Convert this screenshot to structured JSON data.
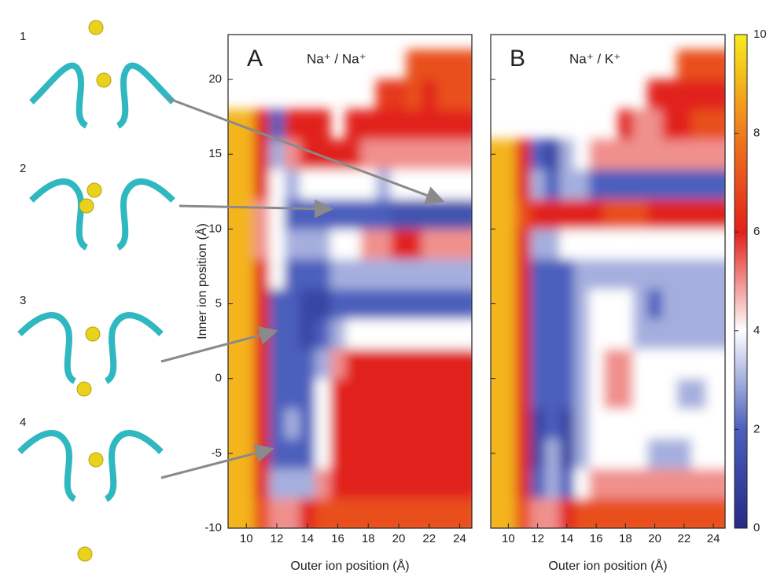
{
  "snapshots": [
    "1",
    "2",
    "3",
    "4"
  ],
  "chart_data": {
    "type": "heatmap",
    "xlabel": "Outer ion position (Å)",
    "ylabel": "Inner ion position (Å)",
    "x": [
      10,
      11,
      12,
      13,
      14,
      15,
      16,
      17,
      18,
      19,
      20,
      21,
      22,
      23,
      24
    ],
    "y": [
      -9,
      -7,
      -5,
      -3,
      -1,
      1,
      3,
      5,
      7,
      9,
      11,
      13,
      15,
      17,
      19,
      21
    ],
    "xlim": [
      8.8,
      24.8
    ],
    "ylim": [
      -10,
      23
    ],
    "xticks": [
      10,
      12,
      14,
      16,
      18,
      20,
      22,
      24
    ],
    "yticks": [
      -10,
      -5,
      0,
      5,
      10,
      15,
      20
    ],
    "clim": [
      0,
      10
    ],
    "cticks": [
      0,
      2,
      4,
      6,
      8,
      10
    ],
    "colormap": [
      "#262a86",
      "#4b5fbd",
      "#ffffff",
      "#e1211b",
      "#f07c1c",
      "#f8ec1c"
    ],
    "panels": [
      {
        "label": "A",
        "title": "Na⁺ / Na⁺",
        "z": [
          [
            9,
            7,
            5,
            5,
            6,
            7,
            7,
            7,
            7,
            7,
            7,
            7,
            7,
            7,
            7
          ],
          [
            9,
            6,
            3,
            3,
            3,
            5,
            6,
            6,
            6,
            6,
            6,
            6,
            6,
            6,
            6
          ],
          [
            9,
            6,
            2,
            2,
            2,
            4,
            6,
            6,
            6,
            6,
            6,
            6,
            6,
            6,
            6
          ],
          [
            9,
            6,
            2,
            3,
            2,
            4,
            6,
            6,
            6,
            6,
            6,
            6,
            6,
            6,
            6
          ],
          [
            9,
            6,
            2,
            2,
            2,
            4,
            6,
            6,
            6,
            6,
            6,
            6,
            6,
            6,
            6
          ],
          [
            9,
            6,
            2,
            2,
            2,
            3,
            5,
            6,
            6,
            6,
            6,
            6,
            6,
            6,
            6
          ],
          [
            9,
            6,
            2,
            2,
            1,
            2,
            3,
            4,
            4,
            4,
            4,
            4,
            4,
            4,
            4
          ],
          [
            9,
            6,
            2,
            2,
            1,
            1,
            2,
            2,
            2,
            2,
            2,
            2,
            2,
            2,
            2
          ],
          [
            9,
            6,
            4,
            2,
            2,
            2,
            3,
            3,
            3,
            3,
            3,
            3,
            3,
            3,
            3
          ],
          [
            9,
            5,
            4,
            3,
            3,
            3,
            4,
            4,
            5,
            5,
            6,
            6,
            5,
            5,
            5
          ],
          [
            9,
            5,
            4,
            2,
            2,
            2,
            2,
            2,
            2,
            2,
            1.5,
            1.5,
            1.5,
            1.5,
            1.5
          ],
          [
            9,
            6,
            4,
            3,
            4,
            4,
            4,
            4,
            4,
            3,
            4,
            4,
            4,
            4,
            4
          ],
          [
            9,
            6,
            3,
            5,
            6,
            6,
            6,
            6,
            5,
            5,
            5,
            5,
            5,
            5,
            5
          ],
          [
            9,
            6,
            2,
            6,
            6,
            6,
            null,
            6,
            6,
            6,
            6,
            6,
            6,
            6,
            6
          ],
          [
            null,
            null,
            null,
            null,
            null,
            null,
            null,
            null,
            null,
            6.5,
            6.5,
            7,
            6,
            7,
            7
          ],
          [
            null,
            null,
            null,
            null,
            null,
            null,
            null,
            null,
            null,
            null,
            null,
            7,
            7,
            7,
            7
          ]
        ]
      },
      {
        "label": "B",
        "title": "Na⁺ / K⁺",
        "z": [
          [
            9,
            7,
            5,
            5,
            6,
            7,
            7,
            7,
            7,
            7,
            7,
            7,
            7,
            7,
            7
          ],
          [
            9,
            6,
            2,
            3,
            2,
            4,
            5,
            5,
            5,
            5,
            5,
            5,
            5,
            5,
            5
          ],
          [
            9,
            6,
            1,
            3,
            1,
            3,
            4,
            4,
            4,
            4,
            3,
            3,
            3,
            4,
            4
          ],
          [
            9,
            6,
            1,
            2,
            1,
            3,
            4,
            4,
            4,
            4,
            4,
            4,
            4,
            4,
            4
          ],
          [
            9,
            6,
            2,
            2,
            2,
            3,
            4,
            5,
            5,
            4,
            4,
            4,
            3,
            3,
            4
          ],
          [
            9,
            6,
            2,
            2,
            2,
            3,
            4,
            5,
            5,
            4,
            4,
            4,
            4,
            4,
            4
          ],
          [
            9,
            6,
            2,
            2,
            2,
            3,
            4,
            4,
            4,
            3,
            3,
            3,
            3,
            3,
            3
          ],
          [
            9,
            6,
            2,
            2,
            2,
            3,
            4,
            4,
            4,
            3,
            2,
            3,
            3,
            3,
            3
          ],
          [
            9,
            6,
            2,
            2,
            2,
            3,
            3,
            3,
            3,
            3,
            3,
            3,
            3,
            3,
            3
          ],
          [
            9,
            6,
            3,
            3,
            4,
            4,
            4,
            4,
            4,
            4,
            4,
            4,
            4,
            4,
            4
          ],
          [
            9,
            7,
            6,
            6,
            6,
            6,
            6,
            7,
            7,
            7,
            6,
            6,
            6,
            6,
            6
          ],
          [
            9,
            6,
            3,
            2,
            3,
            3,
            2,
            2,
            2,
            2,
            2,
            2,
            2,
            2,
            2
          ],
          [
            9,
            6,
            2,
            1,
            3,
            4,
            5,
            5,
            5,
            5,
            5,
            5,
            5,
            5,
            5
          ],
          [
            null,
            null,
            null,
            null,
            null,
            null,
            null,
            null,
            6,
            5,
            5,
            6,
            6,
            7,
            7
          ],
          [
            null,
            null,
            null,
            null,
            null,
            null,
            null,
            null,
            null,
            null,
            6,
            6,
            6,
            6,
            6
          ],
          [
            null,
            null,
            null,
            null,
            null,
            null,
            null,
            null,
            null,
            null,
            null,
            null,
            7,
            7,
            7
          ]
        ]
      }
    ]
  }
}
